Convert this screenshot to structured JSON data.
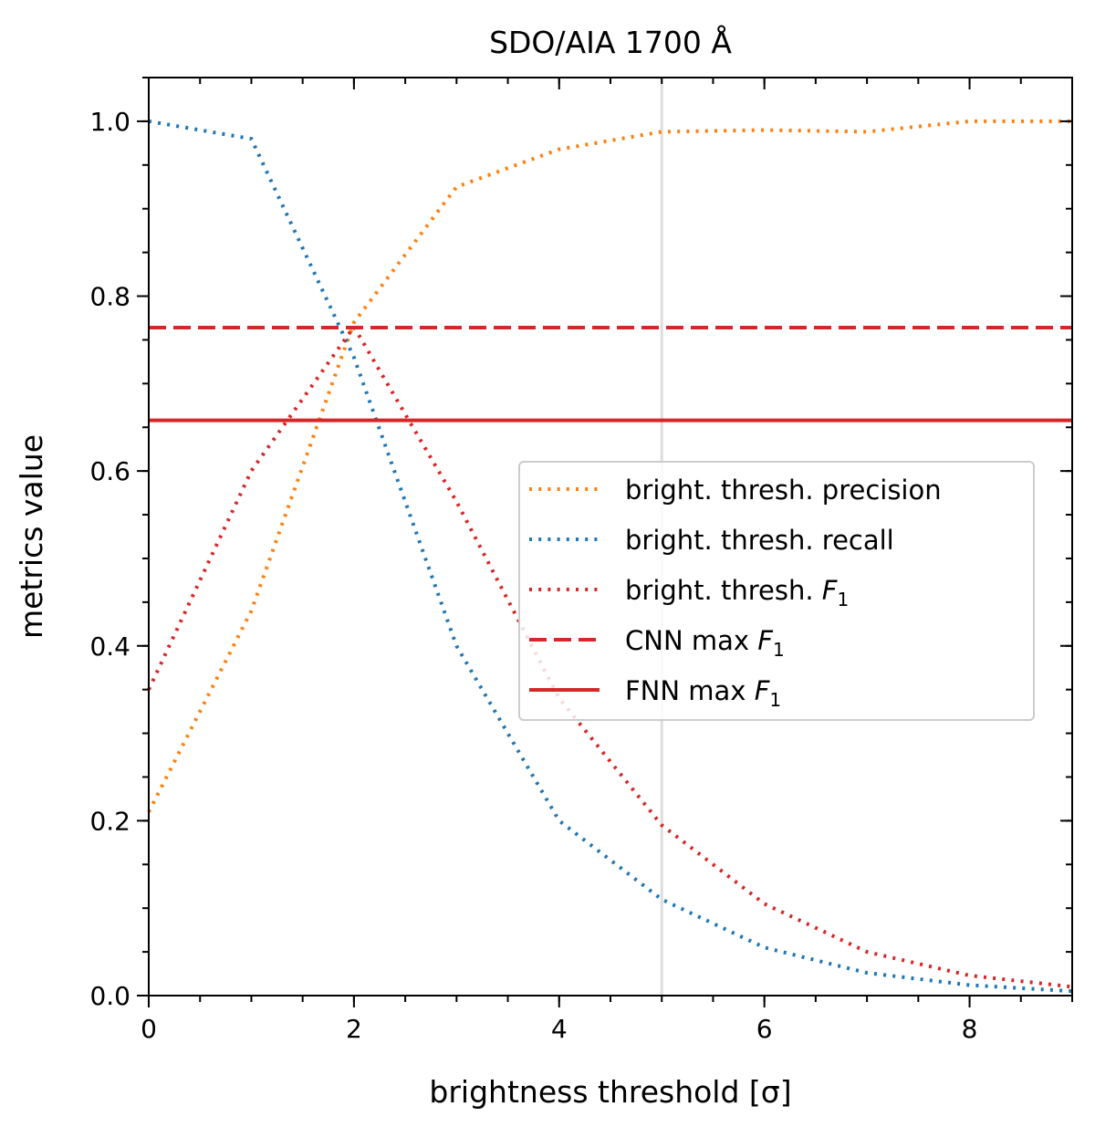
{
  "chart_data": {
    "type": "line",
    "title": "SDO/AIA 1700 Å",
    "xlabel": "brightness threshold [σ]",
    "ylabel": "metrics value",
    "xlim": [
      0,
      9
    ],
    "ylim": [
      0,
      1.05
    ],
    "x_ticks": [
      0,
      2,
      4,
      6,
      8
    ],
    "x_tick_labels": [
      "0",
      "2",
      "4",
      "6",
      "8"
    ],
    "x_minor_step": 0.5,
    "y_ticks": [
      0.0,
      0.2,
      0.4,
      0.6,
      0.8,
      1.0
    ],
    "y_tick_labels": [
      "0.0",
      "0.2",
      "0.4",
      "0.6",
      "0.8",
      "1.0"
    ],
    "y_minor_step": 0.05,
    "grid": false,
    "legend_position": "center-right",
    "series": [
      {
        "name": "bright. thresh. precision",
        "label_main": "bright. thresh. precision",
        "label_sub": "",
        "style": "dotted",
        "color": "#ff7f0e",
        "x": [
          0,
          1,
          2,
          3,
          4,
          5,
          6,
          7,
          8,
          9
        ],
        "y": [
          0.21,
          0.44,
          0.77,
          0.925,
          0.968,
          0.988,
          0.99,
          0.988,
          1.0,
          1.0
        ]
      },
      {
        "name": "bright. thresh. recall",
        "label_main": "bright. thresh. recall",
        "label_sub": "",
        "style": "dotted",
        "color": "#1f77b4",
        "x": [
          0,
          1,
          2,
          3,
          4,
          5,
          6,
          7,
          8,
          9
        ],
        "y": [
          1.0,
          0.98,
          0.73,
          0.4,
          0.2,
          0.11,
          0.055,
          0.026,
          0.012,
          0.005
        ]
      },
      {
        "name": "bright. thresh. F1",
        "label_main": "bright. thresh. F",
        "label_sub": "1",
        "style": "dotted",
        "color": "#d62728",
        "x": [
          0,
          1,
          2,
          3,
          4,
          5,
          6,
          7,
          8,
          9
        ],
        "y": [
          0.35,
          0.6,
          0.765,
          0.565,
          0.34,
          0.195,
          0.105,
          0.05,
          0.023,
          0.01
        ]
      },
      {
        "name": "CNN max F1",
        "label_main": "CNN max F",
        "label_sub": "1",
        "style": "dashed",
        "color": "#d62728",
        "x": [
          0,
          9
        ],
        "y": [
          0.764,
          0.764
        ]
      },
      {
        "name": "FNN max F1",
        "label_main": "FNN max F",
        "label_sub": "1",
        "style": "solid",
        "color": "#d62728",
        "x": [
          0,
          9
        ],
        "y": [
          0.658,
          0.658
        ]
      }
    ],
    "reference_line": {
      "axis": "x",
      "value": 5,
      "color": "#dddddd"
    }
  }
}
